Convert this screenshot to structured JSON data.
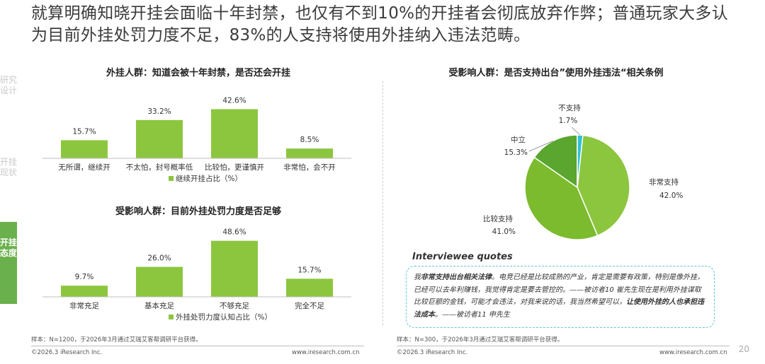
{
  "headline": "就算明确知晓开挂会面临十年封禁，也仅有不到10%的开挂者会彻底放弃作弊；普通玩家大多认为目前外挂处罚力度不足，83%的人支持将使用外挂纳入违法范畴。",
  "sidenav": [
    {
      "label": "研究设计",
      "active": false
    },
    {
      "label": "开挂现状",
      "active": false
    },
    {
      "label": "开挂态度",
      "active": true
    }
  ],
  "colors": {
    "bar": "#8cc63f",
    "pie_very": "#8cc63f",
    "pie_fairly": "#7cbb2e",
    "pie_neutral": "#5aa62e",
    "pie_not": "#2fc0d3",
    "quote_border": "#5fc6d6",
    "nav_active": "#6ab04c"
  },
  "chart_data": [
    {
      "type": "bar",
      "title": "外挂人群：知道会被十年封禁，是否还会开挂",
      "categories": [
        "无所谓，继续开",
        "不太怕，封号概率低",
        "比较怕，更谨慎开",
        "非常怕，会不开"
      ],
      "values": [
        15.7,
        33.2,
        42.6,
        8.5
      ],
      "value_labels": [
        "15.7%",
        "33.2%",
        "42.6%",
        "8.5%"
      ],
      "legend": "继续开挂占比（%）",
      "ylim": [
        0,
        50
      ]
    },
    {
      "type": "bar",
      "title": "受影响人群：目前外挂处罚力度是否足够",
      "categories": [
        "非常充足",
        "基本充足",
        "不够充足",
        "完全不足"
      ],
      "values": [
        9.7,
        26.0,
        48.6,
        15.7
      ],
      "value_labels": [
        "9.7%",
        "26.0%",
        "48.6%",
        "15.7%"
      ],
      "legend": "外挂处罚力度认知占比（%）",
      "ylim": [
        0,
        50
      ]
    },
    {
      "type": "pie",
      "title": "受影响人群：是否支持出台”使用外挂违法“相关条例",
      "slices": [
        {
          "label": "非常支持",
          "value": 42.0,
          "pct": "42.0%"
        },
        {
          "label": "比较支持",
          "value": 41.0,
          "pct": "41.0%"
        },
        {
          "label": "中立",
          "value": 15.3,
          "pct": "15.3%"
        },
        {
          "label": "不支持",
          "value": 1.7,
          "pct": "1.7%"
        }
      ]
    }
  ],
  "notes": {
    "left": "样本：N=1200，于2026年3月通过艾瑞艾客帮调研平台获得。",
    "right": "样本：N=300，于2026年3月通过艾瑞艾客帮调研平台获得。"
  },
  "quotes": {
    "title": "Interviewee quotes",
    "q1_pre": "我",
    "q1_bold": "非常支持出台相关法律",
    "q1_post": "。电竞已经是比较成熟的产业，肯定是需要有政策，特别是像外挂，已经可以去牟利赚钱，我觉得肯定是要去管控的。——被访者10 崔先生",
    "q2_pre": "现在是利用外挂谋取比较巨额的金钱，可能才会违法，对我来说的话，我当然希望可以，",
    "q2_bold": "让使用外挂的人也承担违法成本",
    "q2_post": "。——被访者11 申先生"
  },
  "footer": {
    "copyright_left": "©2026.3 iResearch Inc.",
    "url_left": "www.iresearch.com.cn",
    "copyright_right": "©2026.3 iResearch Inc.",
    "url_right": "www.iresearch.com.cn",
    "page": "20"
  }
}
